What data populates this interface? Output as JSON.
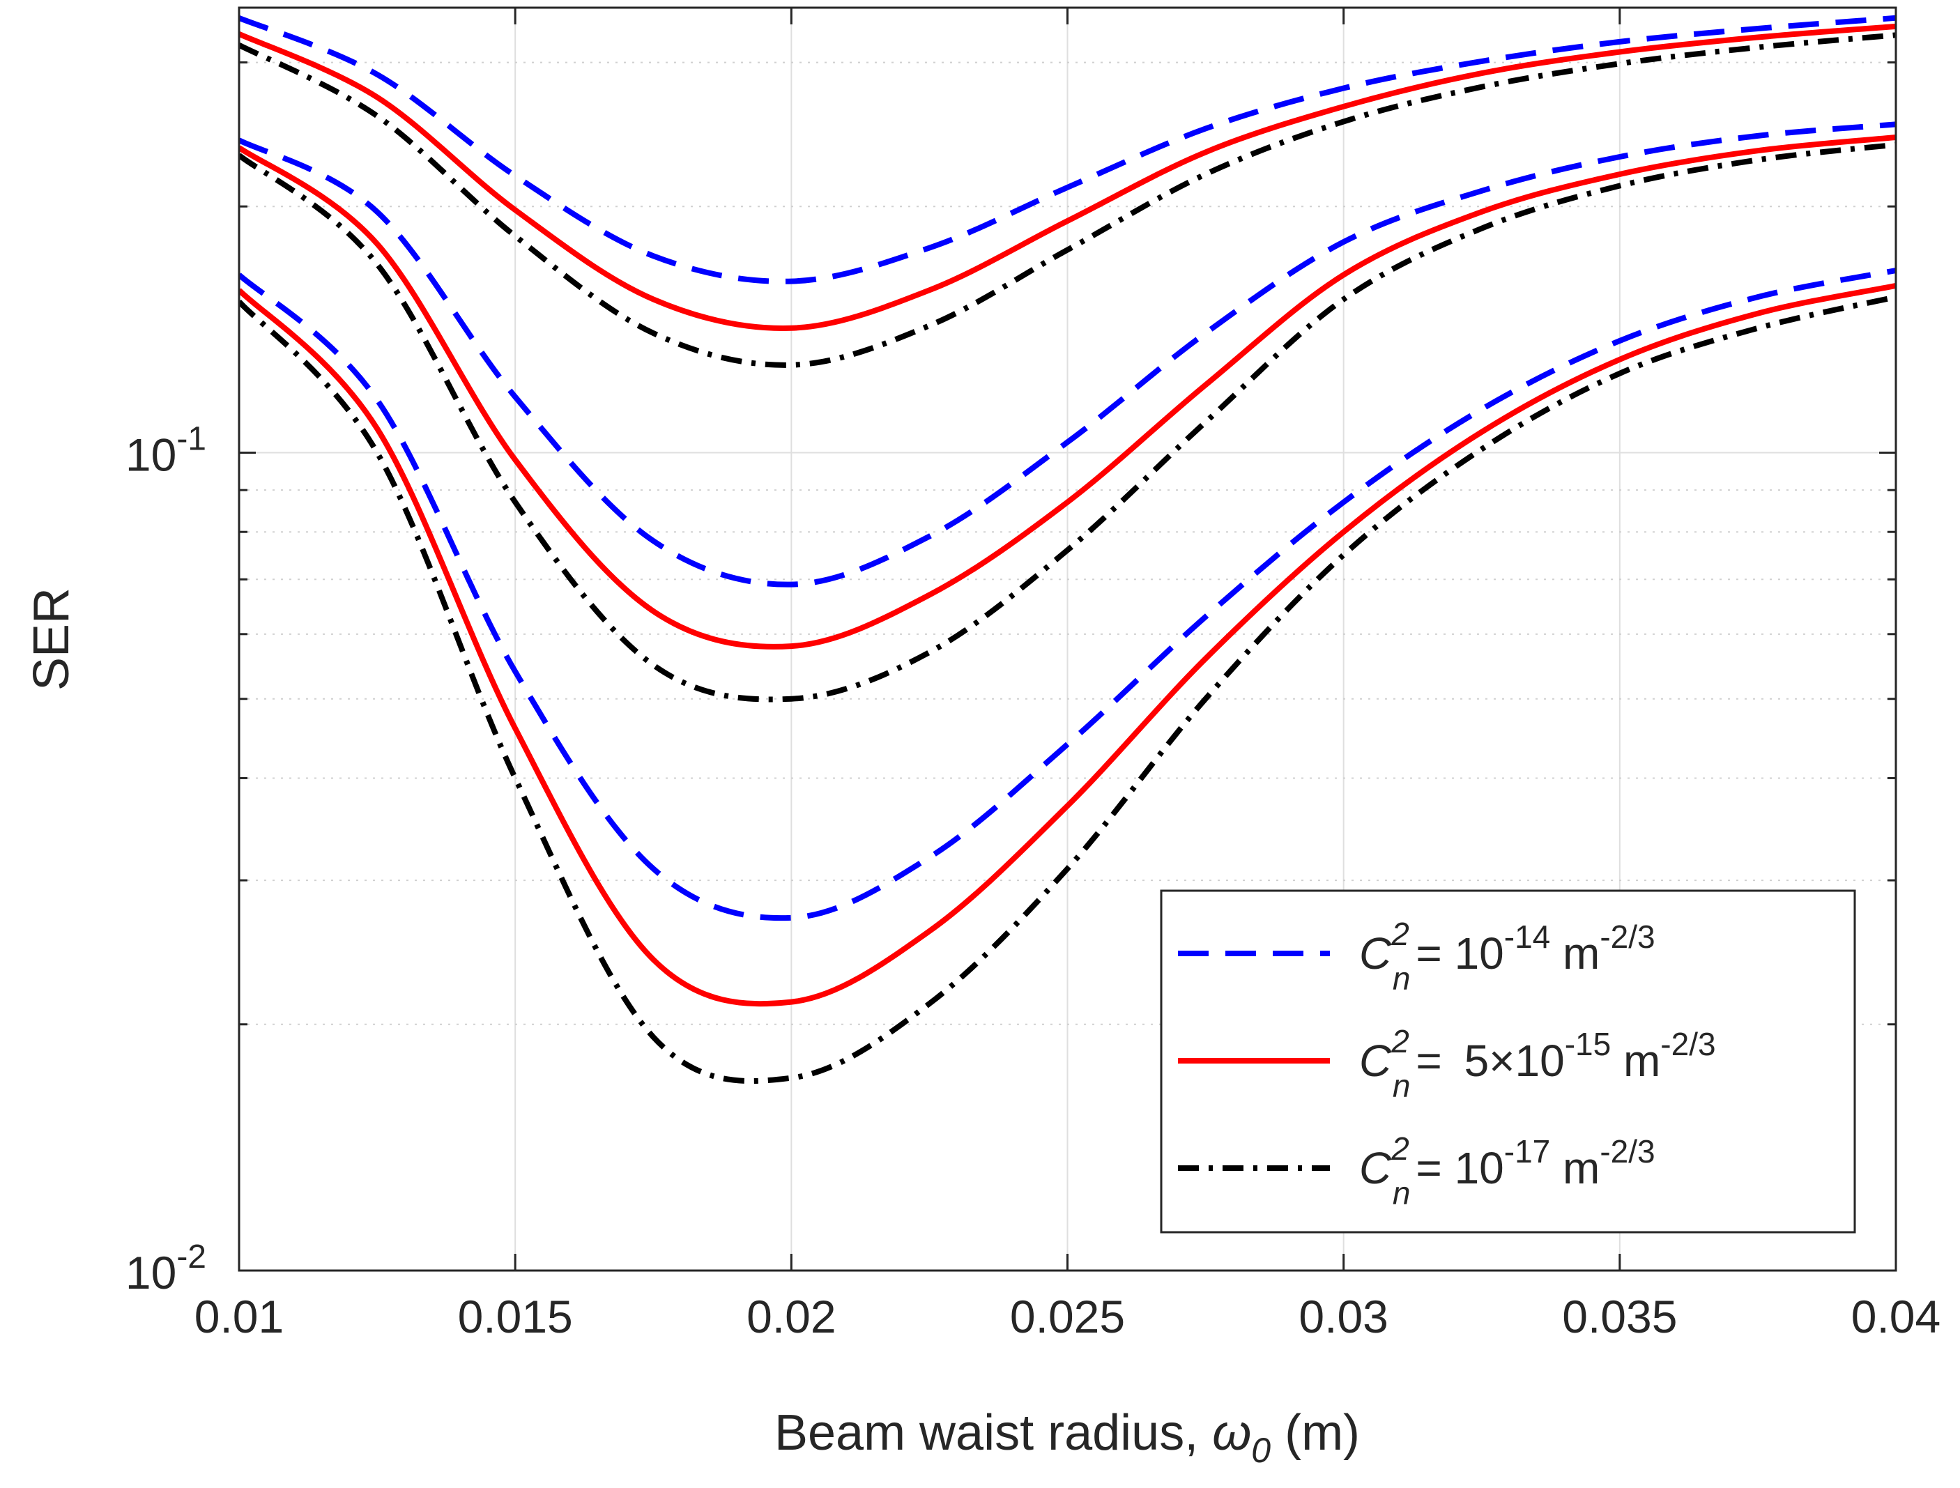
{
  "chart_data": {
    "type": "line",
    "title": "",
    "xlabel": "Beam waist radius, ",
    "xlabel_symbol": "ω",
    "xlabel_subscript": "0",
    "xlabel_unit": " (m)",
    "ylabel": "SER",
    "yscale": "log",
    "xlim": [
      0.01,
      0.04
    ],
    "ylim": [
      0.01,
      0.35
    ],
    "grid": true,
    "x_ticks": [
      0.01,
      0.015,
      0.02,
      0.025,
      0.03,
      0.035,
      0.04
    ],
    "x_tick_labels": [
      "0.01",
      "0.015",
      "0.02",
      "0.025",
      "0.03",
      "0.035",
      "0.04"
    ],
    "y_ticks": [
      0.01,
      0.1
    ],
    "y_tick_labels": [
      {
        "base": "10",
        "exp": "-2"
      },
      {
        "base": "10",
        "exp": "-1"
      }
    ],
    "x": [
      0.01,
      0.0125,
      0.015,
      0.0175,
      0.02,
      0.0225,
      0.025,
      0.0275,
      0.03,
      0.0325,
      0.035,
      0.0375,
      0.04
    ],
    "series": [
      {
        "name": "C_n^2 = 10^-14 m^-2/3",
        "group": 1,
        "color": "#0000ff",
        "style": "dashed",
        "values": [
          0.34,
          0.29,
          0.218,
          0.174,
          0.162,
          0.178,
          0.211,
          0.249,
          0.279,
          0.301,
          0.318,
          0.33,
          0.34
        ]
      },
      {
        "name": "C_n^2 = 5×10^-15 m^-2/3",
        "group": 1,
        "color": "#ff0000",
        "style": "solid",
        "values": [
          0.325,
          0.272,
          0.198,
          0.154,
          0.142,
          0.158,
          0.192,
          0.233,
          0.265,
          0.291,
          0.309,
          0.322,
          0.332
        ]
      },
      {
        "name": "C_n^2 = 10^-17 m^-2/3",
        "group": 1,
        "color": "#000000",
        "style": "dashdot",
        "values": [
          0.315,
          0.258,
          0.184,
          0.14,
          0.128,
          0.143,
          0.177,
          0.219,
          0.254,
          0.28,
          0.299,
          0.313,
          0.324
        ]
      },
      {
        "name": "C_n^2 = 10^-14 m^-2/3",
        "group": 2,
        "color": "#0000ff",
        "style": "dashed",
        "values": [
          0.241,
          0.197,
          0.117,
          0.078,
          0.069,
          0.079,
          0.103,
          0.14,
          0.181,
          0.209,
          0.23,
          0.244,
          0.252
        ]
      },
      {
        "name": "C_n^2 = 5×10^-15 m^-2/3",
        "group": 2,
        "color": "#ff0000",
        "style": "solid",
        "values": [
          0.236,
          0.18,
          0.098,
          0.064,
          0.058,
          0.067,
          0.087,
          0.121,
          0.165,
          0.197,
          0.219,
          0.234,
          0.243
        ]
      },
      {
        "name": "C_n^2 = 10^-17 m^-2/3",
        "group": 2,
        "color": "#000000",
        "style": "dashdot",
        "values": [
          0.231,
          0.17,
          0.087,
          0.055,
          0.05,
          0.057,
          0.076,
          0.109,
          0.154,
          0.188,
          0.212,
          0.228,
          0.238
        ]
      },
      {
        "name": "C_n^2 = 10^-14 m^-2/3",
        "group": 3,
        "color": "#0000ff",
        "style": "dashed",
        "values": [
          0.165,
          0.116,
          0.054,
          0.031,
          0.027,
          0.032,
          0.044,
          0.063,
          0.087,
          0.113,
          0.137,
          0.155,
          0.167
        ]
      },
      {
        "name": "C_n^2 = 5×10^-15 m^-2/3",
        "group": 3,
        "color": "#ff0000",
        "style": "solid",
        "values": [
          0.158,
          0.107,
          0.046,
          0.024,
          0.0213,
          0.026,
          0.037,
          0.056,
          0.08,
          0.106,
          0.13,
          0.148,
          0.16
        ]
      },
      {
        "name": "C_n^2 = 10^-17 m^-2/3",
        "group": 3,
        "color": "#000000",
        "style": "dashdot",
        "values": [
          0.153,
          0.1,
          0.04,
          0.0193,
          0.0172,
          0.0212,
          0.031,
          0.05,
          0.075,
          0.101,
          0.125,
          0.142,
          0.155
        ]
      }
    ],
    "legend": {
      "position": "bottom-right",
      "entries": [
        {
          "symbol": "C",
          "sup": "2",
          "sub": "n",
          "eq": "= ",
          "coef": "",
          "base": "10",
          "exp": "-14",
          "unit": " m",
          "unit_exp": "-2/3",
          "color": "#0000ff",
          "style": "dashed"
        },
        {
          "symbol": "C",
          "sup": "2",
          "sub": "n",
          "eq": "= ",
          "coef": "5×",
          "base": "10",
          "exp": "-15",
          "unit": " m",
          "unit_exp": "-2/3",
          "color": "#ff0000",
          "style": "solid"
        },
        {
          "symbol": "C",
          "sup": "2",
          "sub": "n",
          "eq": "= ",
          "coef": "",
          "base": "10",
          "exp": "-17",
          "unit": " m",
          "unit_exp": "-2/3",
          "color": "#000000",
          "style": "dashdot"
        }
      ]
    }
  }
}
